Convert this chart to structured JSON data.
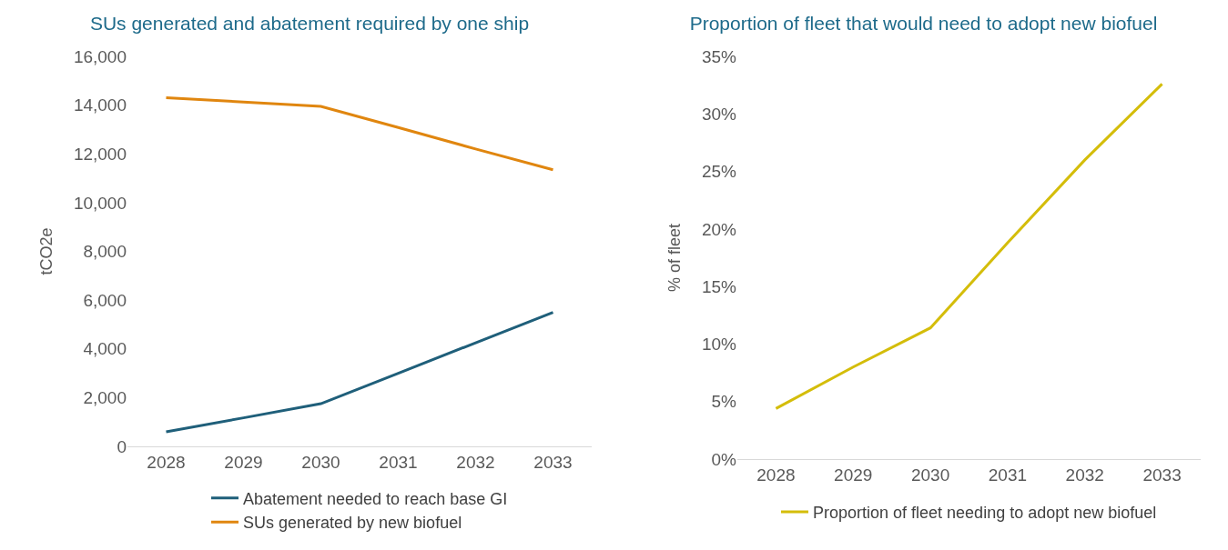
{
  "chart_data": [
    {
      "type": "line",
      "title": "SUs generated and abatement required by one ship",
      "ylabel": "tCO2e",
      "categories": [
        "2028",
        "2029",
        "2030",
        "2031",
        "2032",
        "2033"
      ],
      "series": [
        {
          "name": "Abatement needed to reach base GI",
          "color": "#1f5f7a",
          "values": [
            600,
            1170,
            1750,
            3000,
            4250,
            5500
          ]
        },
        {
          "name": "SUs generated by new biofuel",
          "color": "#e0860f",
          "values": [
            14300,
            14130,
            13950,
            13080,
            12200,
            11350
          ]
        }
      ],
      "ylim": [
        0,
        16000
      ],
      "yticks": [
        {
          "value": 0,
          "label": "0"
        },
        {
          "value": 2000,
          "label": "2,000"
        },
        {
          "value": 4000,
          "label": "4,000"
        },
        {
          "value": 6000,
          "label": "6,000"
        },
        {
          "value": 8000,
          "label": "8,000"
        },
        {
          "value": 10000,
          "label": "10,000"
        },
        {
          "value": 12000,
          "label": "12,000"
        },
        {
          "value": 14000,
          "label": "14,000"
        },
        {
          "value": 16000,
          "label": "16,000"
        }
      ],
      "grid": false,
      "legend": "bottom",
      "marker": "none",
      "line_style": "solid"
    },
    {
      "type": "line",
      "title": "Proportion of fleet that would need to adopt new biofuel",
      "ylabel": "% of fleet",
      "categories": [
        "2028",
        "2029",
        "2030",
        "2031",
        "2032",
        "2033"
      ],
      "series": [
        {
          "name": "Proportion of fleet needing to adopt new biofuel",
          "color": "#d4bd0a",
          "values": [
            4.4,
            8.0,
            11.4,
            18.8,
            26.0,
            32.6
          ]
        }
      ],
      "ylim": [
        0,
        35
      ],
      "yticks": [
        {
          "value": 0,
          "label": "0%"
        },
        {
          "value": 5,
          "label": "5%"
        },
        {
          "value": 10,
          "label": "10%"
        },
        {
          "value": 15,
          "label": "15%"
        },
        {
          "value": 20,
          "label": "20%"
        },
        {
          "value": 25,
          "label": "25%"
        },
        {
          "value": 30,
          "label": "30%"
        },
        {
          "value": 35,
          "label": "35%"
        }
      ],
      "grid": false,
      "legend": "bottom",
      "marker": "none",
      "line_style": "solid"
    }
  ]
}
